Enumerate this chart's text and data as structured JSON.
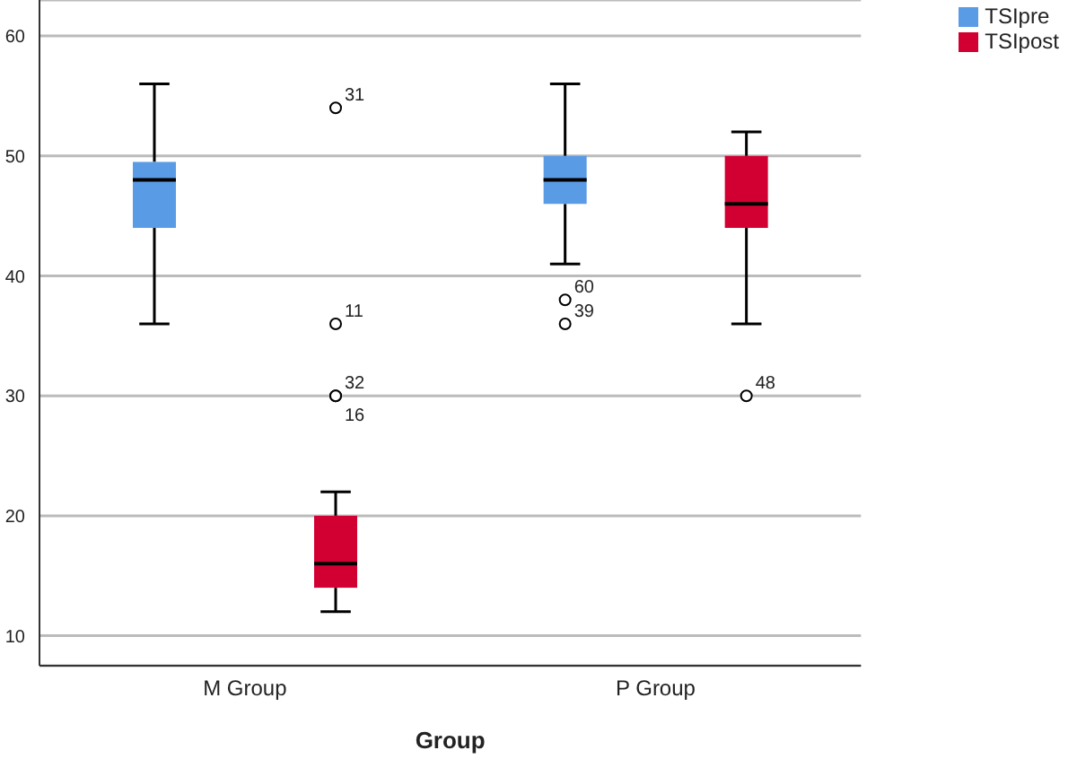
{
  "chart_data": {
    "type": "box",
    "xlabel": "Group",
    "categories": [
      "M Group",
      "P Group"
    ],
    "series": [
      {
        "name": "TSIpre",
        "color": "#5a9be6",
        "boxes": [
          {
            "low": 36,
            "q1": 44,
            "median": 48,
            "q3": 49.5,
            "high": 56
          },
          {
            "low": 41,
            "q1": 46,
            "median": 48,
            "q3": 50,
            "high": 56,
            "outliers": [
              38,
              36
            ]
          }
        ]
      },
      {
        "name": "TSIpost",
        "color": "#d20032",
        "boxes": [
          {
            "low": 12,
            "q1": 14,
            "median": 16,
            "q3": 20,
            "high": 22,
            "outliers": [
              54,
              36,
              30,
              30
            ]
          },
          {
            "low": 36,
            "q1": 44,
            "median": 46,
            "q3": 50,
            "high": 52,
            "outliers": [
              30
            ]
          }
        ]
      }
    ],
    "annotations": [
      "31",
      "11",
      "32",
      "16",
      "60",
      "39",
      "48"
    ],
    "ylim": [
      7.5,
      63
    ],
    "yticks": [
      10,
      20,
      30,
      40,
      50,
      60
    ],
    "grid": "y",
    "legend": "top right"
  }
}
